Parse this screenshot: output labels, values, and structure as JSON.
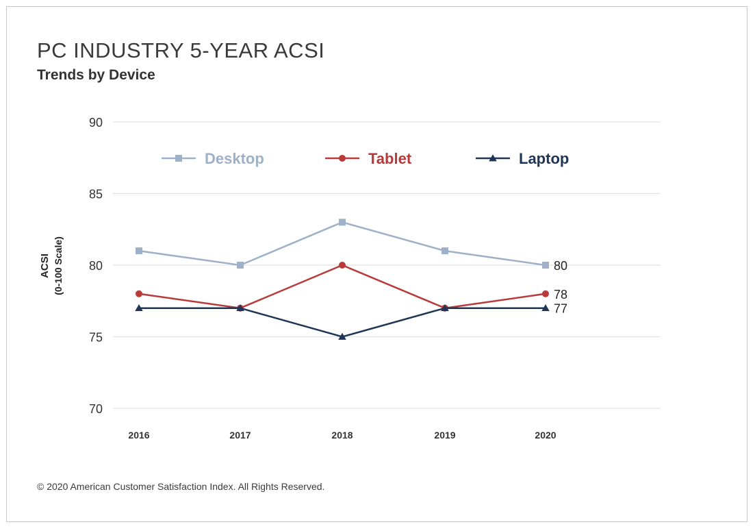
{
  "title": "PC INDUSTRY 5-YEAR ACSI",
  "subtitle": "Trends by Device",
  "footer": "© 2020 American Customer Satisfaction Index. All Rights Reserved.",
  "chart_data": {
    "type": "line",
    "categories": [
      "2016",
      "2017",
      "2018",
      "2019",
      "2020"
    ],
    "yticks": [
      70,
      75,
      80,
      85,
      90
    ],
    "ylim": [
      70,
      90
    ],
    "ylabel": "ACSI",
    "ylabel_sub": "(0-100 Scale)",
    "grid": true,
    "legend_position": "top",
    "series": [
      {
        "name": "Desktop",
        "marker": "square",
        "color": "#9eb1c8",
        "values": [
          81,
          80,
          83,
          81,
          80
        ],
        "end_label": "80"
      },
      {
        "name": "Tablet",
        "marker": "circle",
        "color": "#b83a3a",
        "values": [
          78,
          77,
          80,
          77,
          78
        ],
        "end_label": "78"
      },
      {
        "name": "Laptop",
        "marker": "triangle",
        "color": "#1e3556",
        "values": [
          77,
          77,
          75,
          77,
          77
        ],
        "end_label": "77"
      }
    ]
  }
}
